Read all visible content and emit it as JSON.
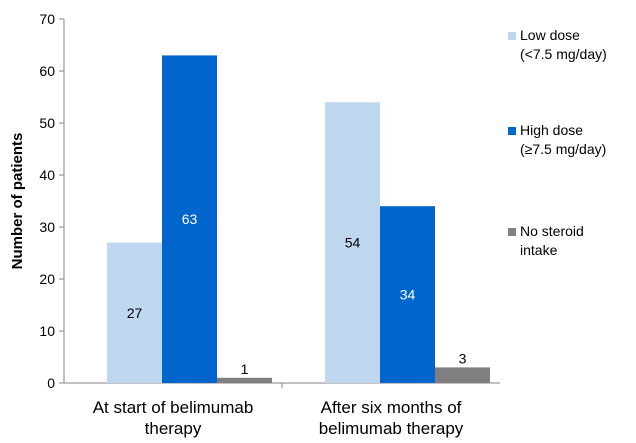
{
  "chart_data": {
    "type": "bar",
    "title": "",
    "ylabel": "Number of patients",
    "xlabel": "",
    "ylim": [
      0,
      70
    ],
    "yticks": [
      0,
      10,
      20,
      30,
      40,
      50,
      60,
      70
    ],
    "grid": false,
    "legend_position": "right",
    "categories": [
      [
        "At start of belimumab",
        "therapy"
      ],
      [
        "After six months of",
        "belimumab therapy"
      ]
    ],
    "series": [
      {
        "name": [
          "Low dose",
          "(<7.5 mg/day)"
        ],
        "color": "#c0d7f0",
        "label_color": "#000000",
        "values": [
          27,
          54
        ]
      },
      {
        "name": [
          "High dose",
          "(≥7.5 mg/day)"
        ],
        "color": "#0066cc",
        "label_color": "#ffffff",
        "values": [
          63,
          34
        ]
      },
      {
        "name": [
          "No steroid",
          "intake"
        ],
        "color": "#7f7f7f",
        "label_color": "#000000",
        "values": [
          1,
          3
        ]
      }
    ]
  }
}
